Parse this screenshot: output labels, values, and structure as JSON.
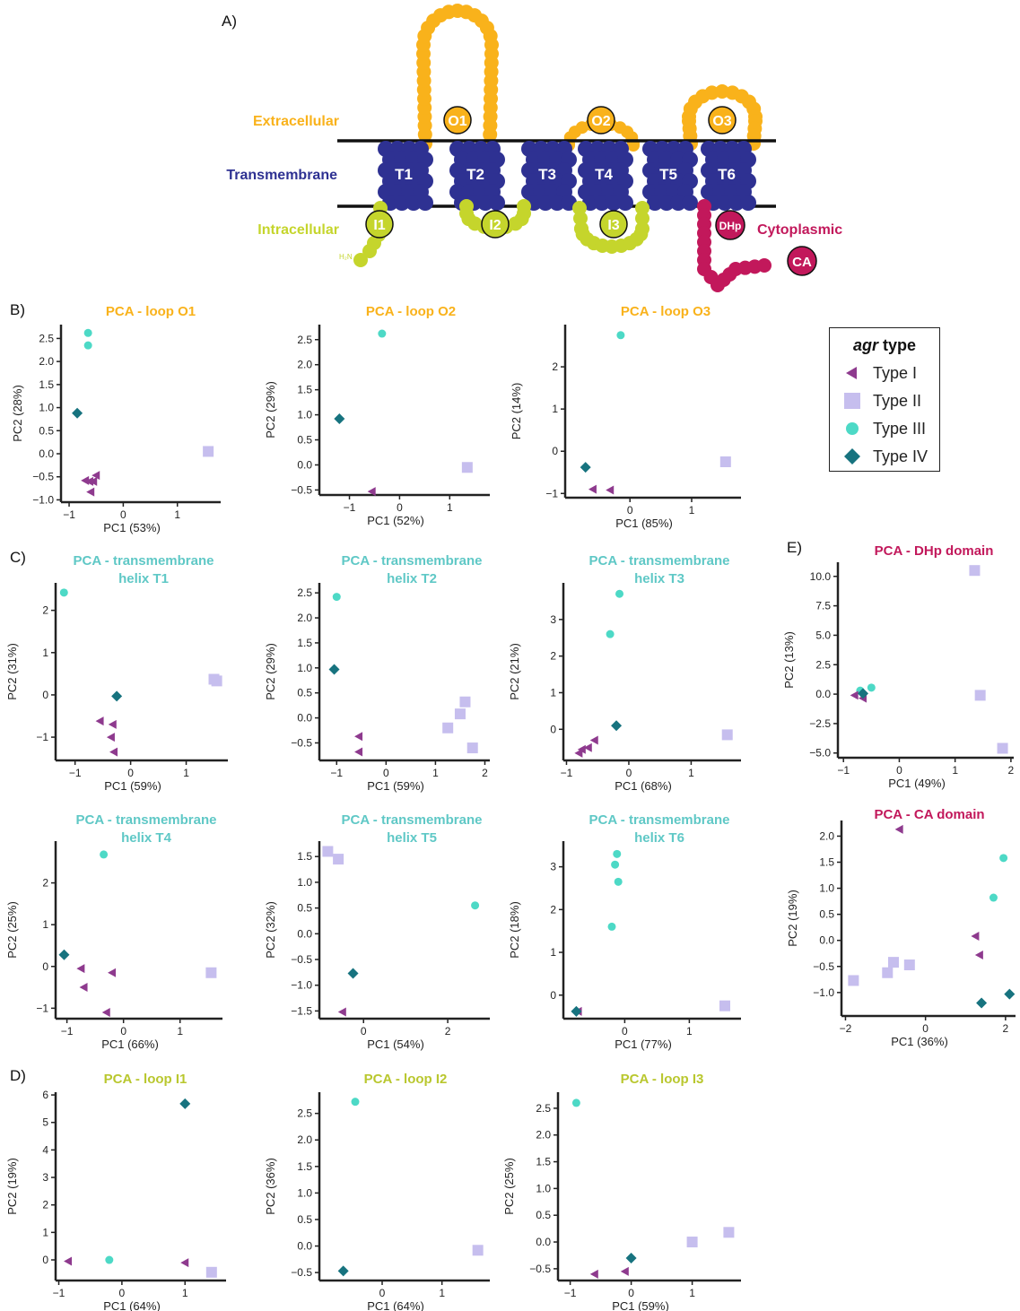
{
  "panel_labels": {
    "a": "A)",
    "b": "B)",
    "c": "C)",
    "d": "D)",
    "e": "E)"
  },
  "diagram": {
    "extracellular": "Extracellular",
    "transmembrane": "Transmembrane",
    "intracellular": "Intracellular",
    "cytoplasmic": "Cytoplasmic",
    "n_terminus": "H₂N",
    "helices": [
      "T1",
      "T2",
      "T3",
      "T4",
      "T5",
      "T6"
    ],
    "outer_loops": [
      "O1",
      "O2",
      "O3"
    ],
    "inner_loops": [
      "I1",
      "I2",
      "I3"
    ],
    "dhp": "DHp",
    "ca": "CA",
    "colors": {
      "extracellular": "#F9B21B",
      "transmembrane": "#2E3192",
      "intracellular": "#C5D52C",
      "cytoplasmic": "#C2185B"
    }
  },
  "legend": {
    "title_italic": "agr",
    "title_rest": " type",
    "items": [
      {
        "label": "Type I",
        "marker": "triangle-left",
        "color": "#8E3A8E"
      },
      {
        "label": "Type II",
        "marker": "square",
        "color": "#C6BEEE"
      },
      {
        "label": "Type III",
        "marker": "circle",
        "color": "#4DD9C6"
      },
      {
        "label": "Type IV",
        "marker": "diamond",
        "color": "#17737F"
      }
    ]
  },
  "chart_data": [
    {
      "id": "o1",
      "type": "scatter",
      "title": [
        "PCA - loop O1"
      ],
      "title_color": "#F9B21B",
      "xlabel": "PC1 (53%)",
      "ylabel": "PC2 (28%)",
      "xlim": [
        -1.15,
        1.8
      ],
      "ylim": [
        -1.05,
        2.8
      ],
      "xticks": [
        -1,
        0,
        1
      ],
      "yticks": [
        -1.0,
        -0.5,
        0.0,
        0.5,
        1.0,
        1.5,
        2.0,
        2.5
      ],
      "ytick_labels": [
        "−1.0",
        "−0.5",
        "0.0",
        "0.5",
        "1.0",
        "1.5",
        "2.0",
        "2.5"
      ],
      "points": {
        "I": [
          [
            -0.7,
            -0.58
          ],
          [
            -0.62,
            -0.6
          ],
          [
            -0.5,
            -0.47
          ],
          [
            -0.55,
            -0.6
          ],
          [
            -0.6,
            -0.83
          ]
        ],
        "II": [
          [
            1.57,
            0.05
          ]
        ],
        "III": [
          [
            -0.65,
            2.62
          ],
          [
            -0.65,
            2.35
          ]
        ],
        "IV": [
          [
            -0.85,
            0.88
          ]
        ]
      }
    },
    {
      "id": "o2",
      "type": "scatter",
      "title": [
        "PCA - loop O2"
      ],
      "title_color": "#F9B21B",
      "xlabel": "PC1 (52%)",
      "ylabel": "PC2 (29%)",
      "xlim": [
        -1.6,
        1.8
      ],
      "ylim": [
        -0.6,
        2.8
      ],
      "xticks": [
        -1,
        0,
        1
      ],
      "yticks": [
        -0.5,
        0.0,
        0.5,
        1.0,
        1.5,
        2.0,
        2.5
      ],
      "ytick_labels": [
        "−0.5",
        "0.0",
        "0.5",
        "1.0",
        "1.5",
        "2.0",
        "2.5"
      ],
      "points": {
        "I": [
          [
            -0.55,
            -0.53
          ]
        ],
        "II": [
          [
            1.35,
            -0.05
          ]
        ],
        "III": [
          [
            -0.35,
            2.62
          ]
        ],
        "IV": [
          [
            -1.2,
            0.92
          ]
        ]
      }
    },
    {
      "id": "o3",
      "type": "scatter",
      "title": [
        "PCA - loop O3"
      ],
      "title_color": "#F9B21B",
      "xlabel": "PC1 (85%)",
      "ylabel": "PC2 (14%)",
      "xlim": [
        -1.05,
        1.8
      ],
      "ylim": [
        -1.1,
        3.0
      ],
      "xticks": [
        0,
        1
      ],
      "yticks": [
        -1,
        0,
        1,
        2
      ],
      "ytick_labels": [
        "−1",
        "0",
        "1",
        "2"
      ],
      "points": {
        "I": [
          [
            -0.6,
            -0.9
          ],
          [
            -0.32,
            -0.92
          ]
        ],
        "II": [
          [
            1.55,
            -0.25
          ]
        ],
        "III": [
          [
            -0.15,
            2.75
          ]
        ],
        "IV": [
          [
            -0.72,
            -0.38
          ]
        ]
      }
    },
    {
      "id": "t1",
      "type": "scatter",
      "title": [
        "PCA - transmembrane",
        "helix T1"
      ],
      "title_color": "#5FC8C6",
      "xlabel": "PC1 (59%)",
      "ylabel": "PC2 (31%)",
      "xlim": [
        -1.35,
        1.75
      ],
      "ylim": [
        -1.55,
        2.65
      ],
      "xticks": [
        -1,
        0,
        1
      ],
      "yticks": [
        -1,
        0,
        1,
        2
      ],
      "ytick_labels": [
        "−1",
        "0",
        "1",
        "2"
      ],
      "points": {
        "I": [
          [
            -0.32,
            -0.7
          ],
          [
            -0.55,
            -0.62
          ],
          [
            -0.35,
            -1.0
          ],
          [
            -0.3,
            -1.35
          ]
        ],
        "II": [
          [
            1.5,
            0.37
          ],
          [
            1.55,
            0.33
          ]
        ],
        "III": [
          [
            -1.2,
            2.42
          ]
        ],
        "IV": [
          [
            -0.25,
            -0.03
          ]
        ]
      }
    },
    {
      "id": "t2",
      "type": "scatter",
      "title": [
        "PCA - transmembrane",
        "helix T2"
      ],
      "title_color": "#5FC8C6",
      "xlabel": "PC1 (59%)",
      "ylabel": "PC2 (29%)",
      "xlim": [
        -1.35,
        2.1
      ],
      "ylim": [
        -0.85,
        2.7
      ],
      "xticks": [
        -1,
        0,
        1,
        2
      ],
      "yticks": [
        -0.5,
        0.0,
        0.5,
        1.0,
        1.5,
        2.0,
        2.5
      ],
      "ytick_labels": [
        "−0.5",
        "0.0",
        "0.5",
        "1.0",
        "1.5",
        "2.0",
        "2.5"
      ],
      "points": {
        "I": [
          [
            -0.55,
            -0.37
          ],
          [
            -0.55,
            -0.68
          ]
        ],
        "II": [
          [
            1.6,
            0.32
          ],
          [
            1.5,
            0.08
          ],
          [
            1.25,
            -0.2
          ],
          [
            1.75,
            -0.6
          ]
        ],
        "III": [
          [
            -1.0,
            2.42
          ]
        ],
        "IV": [
          [
            -1.05,
            0.97
          ]
        ]
      }
    },
    {
      "id": "t3",
      "type": "scatter",
      "title": [
        "PCA - transmembrane",
        "helix T3"
      ],
      "title_color": "#5FC8C6",
      "xlabel": "PC1 (68%)",
      "ylabel": "PC2 (21%)",
      "xlim": [
        -1.05,
        1.8
      ],
      "ylim": [
        -0.85,
        4.0
      ],
      "xticks": [
        -1,
        0,
        1
      ],
      "yticks": [
        0,
        1,
        2,
        3
      ],
      "ytick_labels": [
        "0",
        "1",
        "2",
        "3"
      ],
      "points": {
        "I": [
          [
            -0.8,
            -0.65
          ],
          [
            -0.65,
            -0.5
          ],
          [
            -0.55,
            -0.3
          ],
          [
            -0.75,
            -0.55
          ]
        ],
        "II": [
          [
            1.58,
            -0.15
          ]
        ],
        "III": [
          [
            -0.15,
            3.7
          ],
          [
            -0.3,
            2.6
          ]
        ],
        "IV": [
          [
            -0.2,
            0.1
          ]
        ]
      }
    },
    {
      "id": "t4",
      "type": "scatter",
      "title": [
        "PCA - transmembrane",
        "helix T4"
      ],
      "title_color": "#5FC8C6",
      "xlabel": "PC1 (66%)",
      "ylabel": "PC2 (25%)",
      "xlim": [
        -1.2,
        1.75
      ],
      "ylim": [
        -1.25,
        3.0
      ],
      "xticks": [
        -1,
        0,
        1
      ],
      "yticks": [
        -1,
        0,
        1,
        2
      ],
      "ytick_labels": [
        "−1",
        "0",
        "1",
        "2"
      ],
      "points": {
        "I": [
          [
            -0.75,
            -0.05
          ],
          [
            -0.7,
            -0.5
          ],
          [
            -0.2,
            -0.15
          ],
          [
            -0.3,
            -1.1
          ]
        ],
        "II": [
          [
            1.55,
            -0.15
          ]
        ],
        "III": [
          [
            -0.35,
            2.68
          ]
        ],
        "IV": [
          [
            -1.05,
            0.28
          ]
        ]
      }
    },
    {
      "id": "t5",
      "type": "scatter",
      "title": [
        "PCA - transmembrane",
        "helix T5"
      ],
      "title_color": "#5FC8C6",
      "xlabel": "PC1 (54%)",
      "ylabel": "PC2 (32%)",
      "xlim": [
        -1.05,
        3.0
      ],
      "ylim": [
        -1.65,
        1.8
      ],
      "xticks": [
        0,
        2
      ],
      "yticks": [
        -1.5,
        -1.0,
        -0.5,
        0.0,
        0.5,
        1.0,
        1.5
      ],
      "ytick_labels": [
        "−1.5",
        "−1.0",
        "−0.5",
        "0.0",
        "0.5",
        "1.0",
        "1.5"
      ],
      "points": {
        "I": [
          [
            -0.5,
            -1.52
          ]
        ],
        "II": [
          [
            -0.85,
            1.6
          ],
          [
            -0.6,
            1.45
          ]
        ],
        "III": [
          [
            2.65,
            0.55
          ]
        ],
        "IV": [
          [
            -0.25,
            -0.77
          ]
        ]
      }
    },
    {
      "id": "t6",
      "type": "scatter",
      "title": [
        "PCA - transmembrane",
        "helix T6"
      ],
      "title_color": "#5FC8C6",
      "xlabel": "PC1 (77%)",
      "ylabel": "PC2 (18%)",
      "xlim": [
        -0.95,
        1.8
      ],
      "ylim": [
        -0.55,
        3.6
      ],
      "xticks": [
        0,
        1
      ],
      "yticks": [
        0,
        1,
        2,
        3
      ],
      "ytick_labels": [
        "0",
        "1",
        "2",
        "3"
      ],
      "points": {
        "I": [
          [
            -0.72,
            -0.38
          ]
        ],
        "II": [
          [
            1.55,
            -0.25
          ]
        ],
        "III": [
          [
            -0.12,
            3.3
          ],
          [
            -0.15,
            3.05
          ],
          [
            -0.1,
            2.65
          ],
          [
            -0.2,
            1.6
          ]
        ],
        "IV": [
          [
            -0.75,
            -0.38
          ]
        ]
      }
    },
    {
      "id": "i1",
      "type": "scatter",
      "title": [
        "PCA - loop I1"
      ],
      "title_color": "#B9C72E",
      "xlabel": "PC1 (64%)",
      "ylabel": "PC2 (19%)",
      "xlim": [
        -1.05,
        1.65
      ],
      "ylim": [
        -0.75,
        6.1
      ],
      "xticks": [
        -1,
        0,
        1
      ],
      "yticks": [
        0,
        1,
        2,
        3,
        4,
        5,
        6
      ],
      "ytick_labels": [
        "0",
        "1",
        "2",
        "3",
        "4",
        "5",
        "6"
      ],
      "points": {
        "I": [
          [
            -0.85,
            -0.05
          ],
          [
            1.0,
            -0.1
          ]
        ],
        "II": [
          [
            1.42,
            -0.45
          ]
        ],
        "III": [
          [
            -0.2,
            0.0
          ]
        ],
        "IV": [
          [
            1.0,
            5.68
          ]
        ]
      }
    },
    {
      "id": "i2",
      "type": "scatter",
      "title": [
        "PCA - loop I2"
      ],
      "title_color": "#B9C72E",
      "xlabel": "PC1 (64%)",
      "ylabel": "PC2 (36%)",
      "xlim": [
        -1.05,
        1.8
      ],
      "ylim": [
        -0.65,
        2.9
      ],
      "xticks": [
        0,
        1
      ],
      "yticks": [
        -0.5,
        0.0,
        0.5,
        1.0,
        1.5,
        2.0,
        2.5
      ],
      "ytick_labels": [
        "−0.5",
        "0.0",
        "0.5",
        "1.0",
        "1.5",
        "2.0",
        "2.5"
      ],
      "points": {
        "I": [],
        "II": [
          [
            1.6,
            -0.08
          ]
        ],
        "III": [
          [
            -0.45,
            2.72
          ]
        ],
        "IV": [
          [
            -0.65,
            -0.47
          ]
        ]
      }
    },
    {
      "id": "i3",
      "type": "scatter",
      "title": [
        "PCA - loop I3"
      ],
      "title_color": "#B9C72E",
      "xlabel": "PC1 (59%)",
      "ylabel": "PC2 (25%)",
      "xlim": [
        -1.2,
        1.8
      ],
      "ylim": [
        -0.72,
        2.8
      ],
      "xticks": [
        -1,
        0,
        1
      ],
      "yticks": [
        -0.5,
        0.0,
        0.5,
        1.0,
        1.5,
        2.0,
        2.5
      ],
      "ytick_labels": [
        "−0.5",
        "0.0",
        "0.5",
        "1.0",
        "1.5",
        "2.0",
        "2.5"
      ],
      "points": {
        "I": [
          [
            -0.6,
            -0.6
          ],
          [
            -0.1,
            -0.55
          ]
        ],
        "II": [
          [
            1.0,
            0.0
          ],
          [
            1.6,
            0.18
          ]
        ],
        "III": [
          [
            -0.9,
            2.6
          ]
        ],
        "IV": [
          [
            0.0,
            -0.3
          ]
        ]
      }
    },
    {
      "id": "dhp",
      "type": "scatter",
      "title": [
        "PCA - DHp domain"
      ],
      "title_color": "#C2185B",
      "xlabel": "PC1 (49%)",
      "ylabel": "PC2 (13%)",
      "xlim": [
        -1.1,
        2.05
      ],
      "ylim": [
        -5.4,
        11.2
      ],
      "xticks": [
        -1,
        0,
        1,
        2
      ],
      "yticks": [
        -5.0,
        -2.5,
        0.0,
        2.5,
        5.0,
        7.5,
        10.0
      ],
      "ytick_labels": [
        "−5.0",
        "−2.5",
        "0.0",
        "2.5",
        "5.0",
        "7.5",
        "10.0"
      ],
      "points": {
        "I": [
          [
            -0.8,
            -0.1
          ],
          [
            -0.65,
            -0.35
          ]
        ],
        "II": [
          [
            1.35,
            10.5
          ],
          [
            1.45,
            -0.1
          ],
          [
            1.85,
            -4.6
          ]
        ],
        "III": [
          [
            -0.7,
            0.3
          ],
          [
            -0.5,
            0.55
          ]
        ],
        "IV": [
          [
            -0.65,
            0.05
          ]
        ]
      }
    },
    {
      "id": "ca",
      "type": "scatter",
      "title": [
        "PCA - CA domain"
      ],
      "title_color": "#C2185B",
      "xlabel": "PC1 (36%)",
      "ylabel": "PC2 (19%)",
      "xlim": [
        -2.1,
        2.25
      ],
      "ylim": [
        -1.45,
        2.3
      ],
      "xticks": [
        -2,
        0,
        2
      ],
      "yticks": [
        -1.0,
        -0.5,
        0.0,
        0.5,
        1.0,
        1.5,
        2.0
      ],
      "ytick_labels": [
        "−1.0",
        "−0.5",
        "0.0",
        "0.5",
        "1.0",
        "1.5",
        "2.0"
      ],
      "points": {
        "I": [
          [
            -0.65,
            2.13
          ],
          [
            1.25,
            0.08
          ],
          [
            1.35,
            -0.28
          ]
        ],
        "II": [
          [
            -1.8,
            -0.77
          ],
          [
            -0.95,
            -0.62
          ],
          [
            -0.8,
            -0.42
          ],
          [
            -0.4,
            -0.47
          ]
        ],
        "III": [
          [
            1.95,
            1.58
          ],
          [
            1.7,
            0.82
          ]
        ],
        "IV": [
          [
            1.4,
            -1.2
          ],
          [
            2.1,
            -1.03
          ]
        ]
      }
    }
  ]
}
